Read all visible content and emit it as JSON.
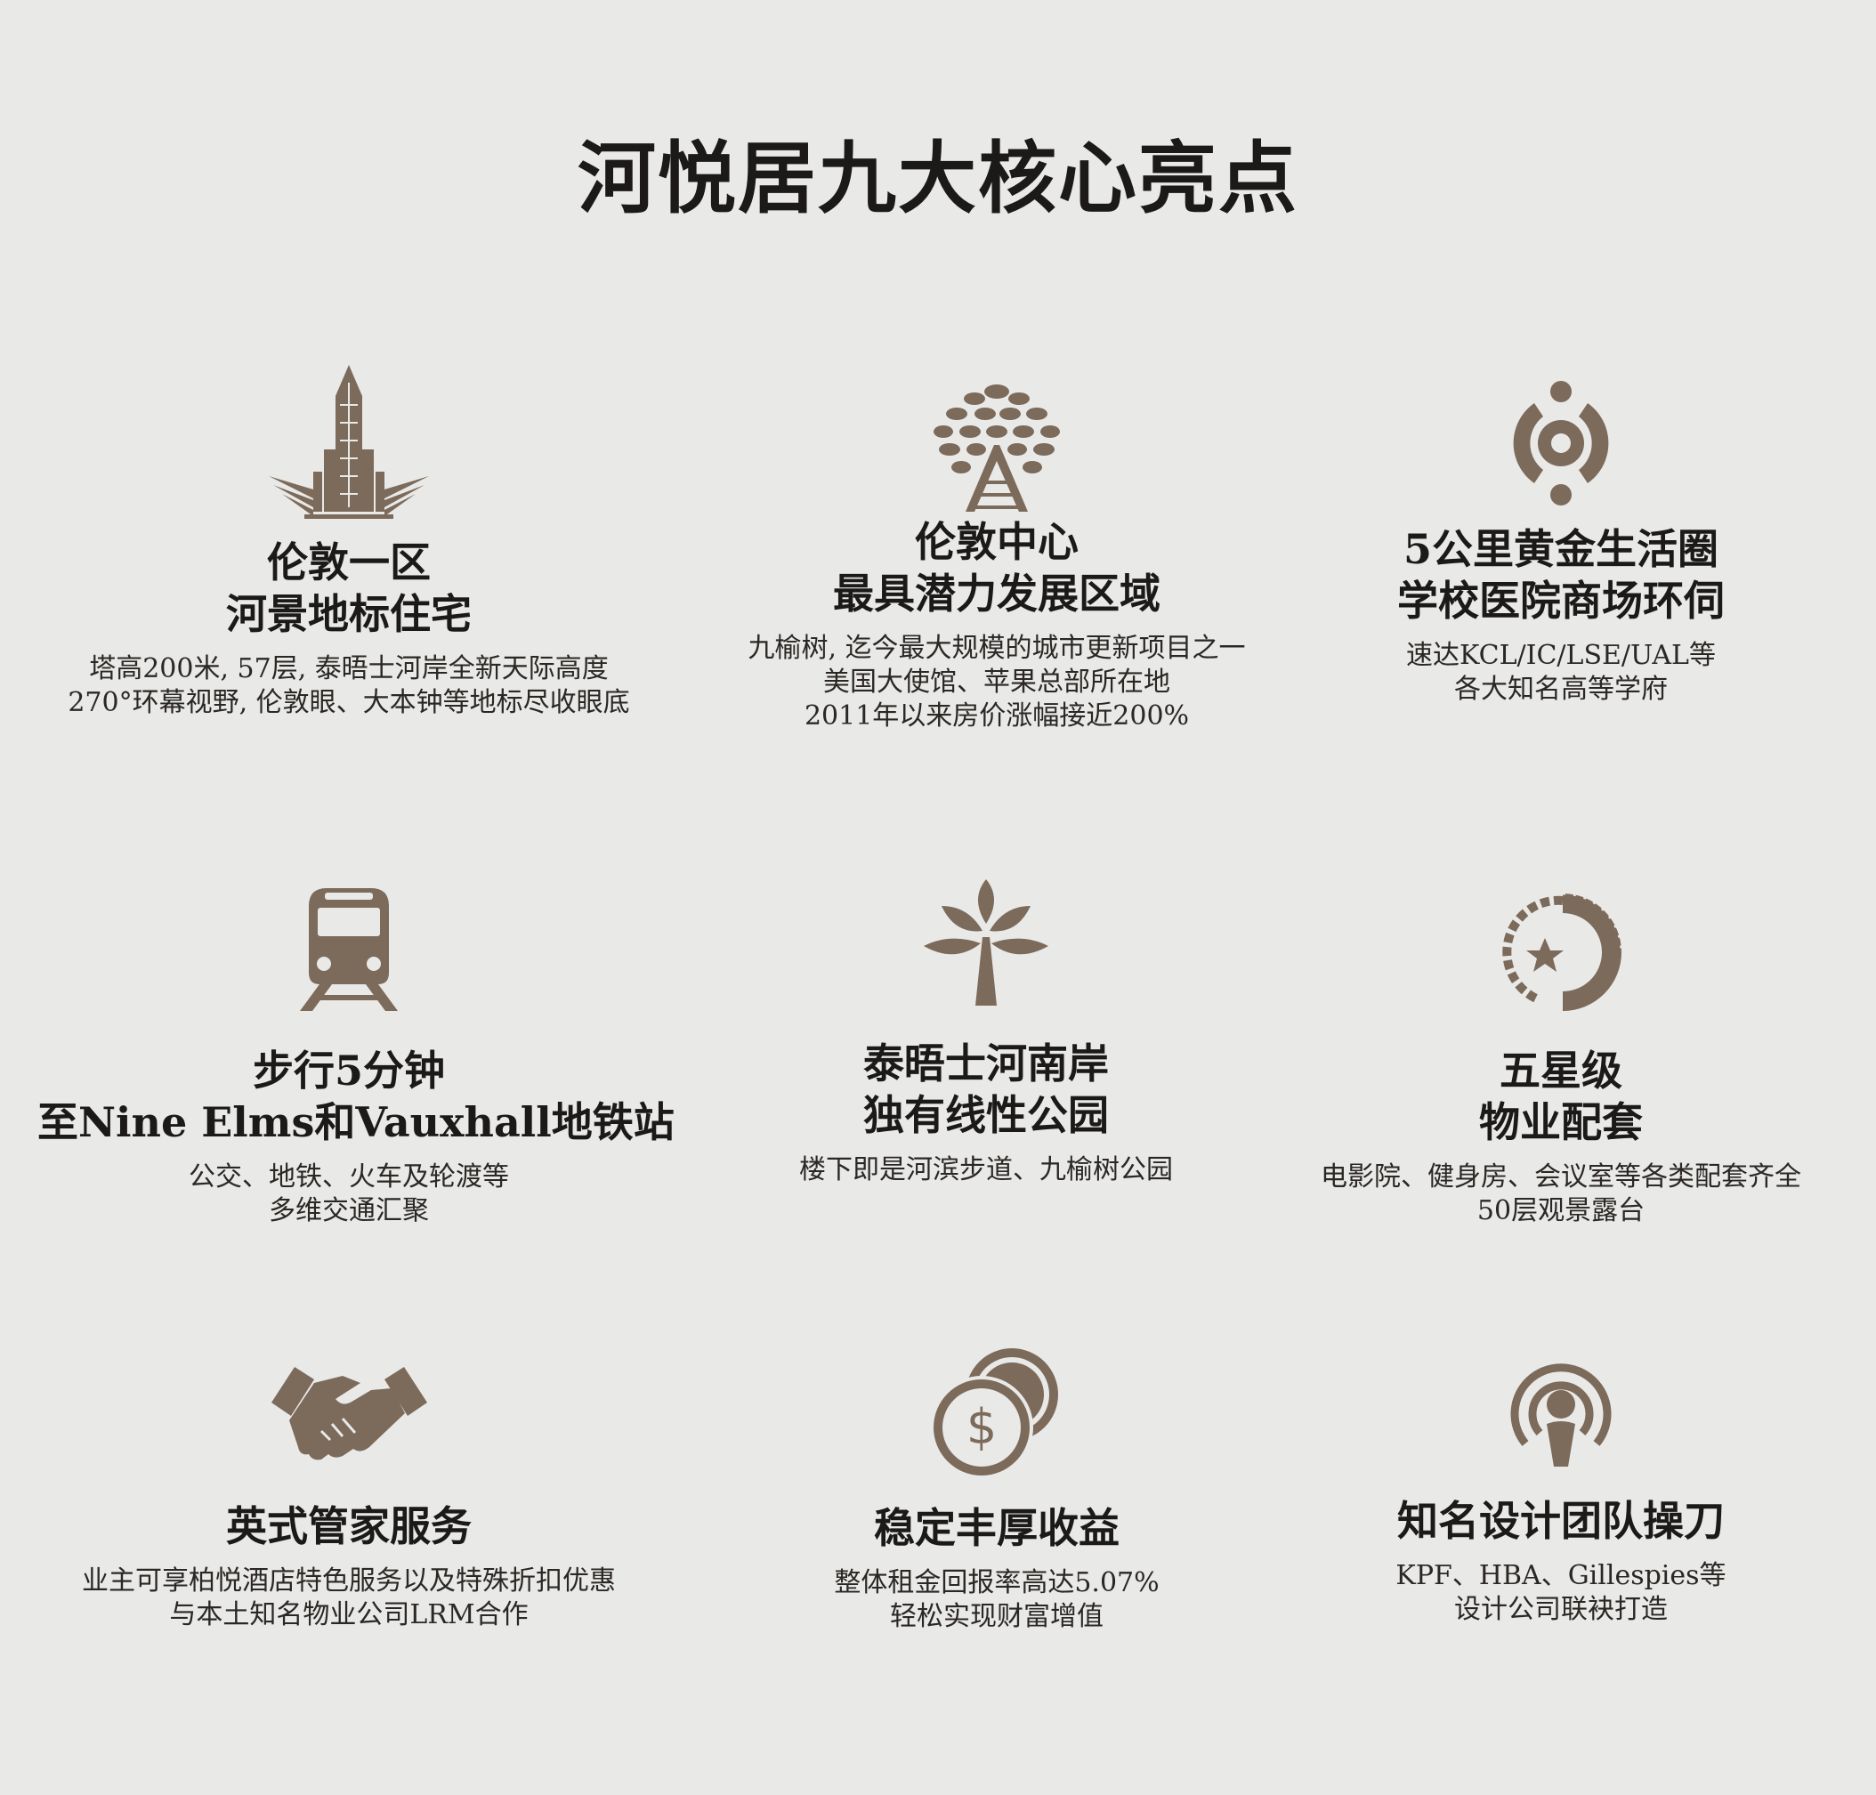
{
  "title": "河悦居九大核心亮点",
  "accent_color": "#7c6a5a",
  "highlights": [
    {
      "icon": "skyscraper-icon",
      "heading": [
        "伦敦一区",
        "河景地标住宅"
      ],
      "description": [
        "塔高200米, 57层, 泰晤士河岸全新天际高度",
        "270°环幕视野, 伦敦眼、大本钟等地标尽收眼底"
      ]
    },
    {
      "icon": "tree-icon",
      "heading": [
        "伦敦中心",
        "最具潜力发展区域"
      ],
      "description": [
        "九榆树, 迄今最大规模的城市更新项目之一",
        "美国大使馆、苹果总部所在地",
        "2011年以来房价涨幅接近200%"
      ]
    },
    {
      "icon": "target-circle-icon",
      "heading": [
        "5公里黄金生活圈",
        "学校医院商场环伺"
      ],
      "description": [
        "速达KCL/IC/LSE/UAL等",
        "各大知名高等学府"
      ]
    },
    {
      "icon": "train-icon",
      "heading": [
        "步行5分钟",
        "至Nine Elms和Vauxhall地铁站"
      ],
      "description": [
        "公交、地铁、火车及轮渡等",
        "多维交通汇聚"
      ]
    },
    {
      "icon": "leaf-icon",
      "heading": [
        "泰晤士河南岸",
        "独有线性公园"
      ],
      "description": [
        "楼下即是河滨步道、九榆树公园"
      ]
    },
    {
      "icon": "star-badge-icon",
      "heading": [
        "五星级",
        "物业配套"
      ],
      "description": [
        "电影院、健身房、会议室等各类配套齐全",
        "50层观景露台"
      ]
    },
    {
      "icon": "handshake-icon",
      "heading": [
        "英式管家服务"
      ],
      "description": [
        "业主可享柏悦酒店特色服务以及特殊折扣优惠",
        "与本土知名物业公司LRM合作"
      ]
    },
    {
      "icon": "coins-icon",
      "heading": [
        "稳定丰厚收益"
      ],
      "description": [
        "整体租金回报率高达5.07%",
        "轻松实现财富增值"
      ]
    },
    {
      "icon": "designer-icon",
      "heading": [
        "知名设计团队操刀"
      ],
      "description": [
        "KPF、HBA、Gillespies等",
        "设计公司联袂打造"
      ]
    }
  ]
}
